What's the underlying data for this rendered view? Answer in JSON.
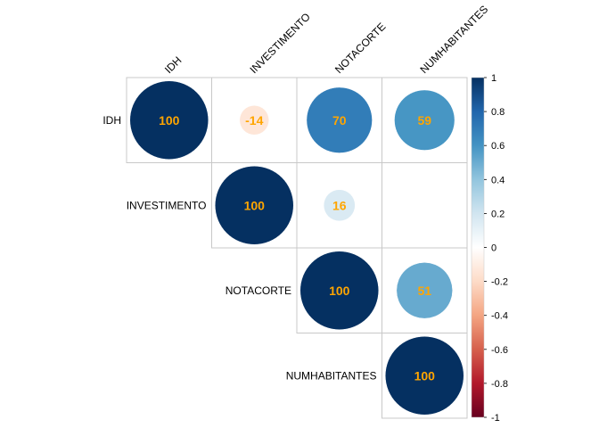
{
  "chart_data": {
    "type": "heatmap",
    "style": "upper-triangle correlation plot with circles",
    "variables": [
      "IDH",
      "INVESTIMENTO",
      "NOTACORTE",
      "NUMHABITANTES"
    ],
    "cells": [
      {
        "row": "IDH",
        "col": "IDH",
        "value": 100,
        "label": "100"
      },
      {
        "row": "IDH",
        "col": "INVESTIMENTO",
        "value": -14,
        "label": "-14"
      },
      {
        "row": "IDH",
        "col": "NOTACORTE",
        "value": 70,
        "label": "70"
      },
      {
        "row": "IDH",
        "col": "NUMHABITANTES",
        "value": 59,
        "label": "59"
      },
      {
        "row": "INVESTIMENTO",
        "col": "INVESTIMENTO",
        "value": 100,
        "label": "100"
      },
      {
        "row": "INVESTIMENTO",
        "col": "NOTACORTE",
        "value": 16,
        "label": "16"
      },
      {
        "row": "INVESTIMENTO",
        "col": "NUMHABITANTES",
        "value": null,
        "label": ""
      },
      {
        "row": "NOTACORTE",
        "col": "NOTACORTE",
        "value": 100,
        "label": "100"
      },
      {
        "row": "NOTACORTE",
        "col": "NUMHABITANTES",
        "value": 51,
        "label": "51"
      },
      {
        "row": "NUMHABITANTES",
        "col": "NUMHABITANTES",
        "value": 100,
        "label": "100"
      }
    ],
    "value_label_color": "#FFA500",
    "colorbar": {
      "range": [
        -1,
        1
      ],
      "ticks": [
        "1",
        "0.8",
        "0.6",
        "0.4",
        "0.2",
        "0",
        "-0.2",
        "-0.4",
        "-0.6",
        "-0.8",
        "-1"
      ],
      "colors": [
        "#053061",
        "#2166AC",
        "#4393C3",
        "#92C5DE",
        "#D1E5F0",
        "#FFFFFF",
        "#FDDBC7",
        "#F4A582",
        "#D6604D",
        "#B2182B",
        "#67001F"
      ]
    }
  }
}
